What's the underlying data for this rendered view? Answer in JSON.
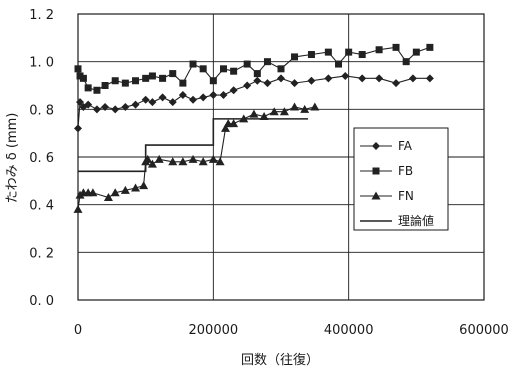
{
  "chart_data": {
    "type": "line",
    "title": "",
    "xlabel": "回数（往復）",
    "ylabel": "たわみ δ (mm)",
    "xlim": [
      0,
      600000
    ],
    "ylim": [
      0.0,
      1.2
    ],
    "x_ticks": [
      {
        "value": 0,
        "label": "0"
      },
      {
        "value": 200000,
        "label": "200000"
      },
      {
        "value": 400000,
        "label": "400000"
      },
      {
        "value": 600000,
        "label": "600000"
      }
    ],
    "y_ticks": [
      {
        "value": 0.0,
        "label": "0. 0"
      },
      {
        "value": 0.2,
        "label": "0. 2"
      },
      {
        "value": 0.4,
        "label": "0. 4"
      },
      {
        "value": 0.6,
        "label": "0. 6"
      },
      {
        "value": 0.8,
        "label": "0. 8"
      },
      {
        "value": 1.0,
        "label": "1. 0"
      },
      {
        "value": 1.2,
        "label": "1. 2"
      }
    ],
    "grid": {
      "horizontal": true,
      "vertical": true
    },
    "legend_position": "right",
    "series": [
      {
        "name": "FA",
        "marker": "diamond",
        "color": "#222222",
        "x": [
          0,
          3000,
          8000,
          15000,
          28000,
          40000,
          55000,
          70000,
          85000,
          100000,
          110000,
          125000,
          140000,
          155000,
          170000,
          185000,
          200000,
          215000,
          230000,
          250000,
          265000,
          280000,
          300000,
          320000,
          345000,
          370000,
          395000,
          420000,
          445000,
          470000,
          495000,
          520000
        ],
        "y": [
          0.72,
          0.83,
          0.81,
          0.82,
          0.8,
          0.81,
          0.8,
          0.81,
          0.82,
          0.84,
          0.83,
          0.85,
          0.83,
          0.86,
          0.84,
          0.85,
          0.86,
          0.86,
          0.88,
          0.9,
          0.92,
          0.91,
          0.93,
          0.91,
          0.92,
          0.93,
          0.94,
          0.93,
          0.93,
          0.91,
          0.93,
          0.93
        ]
      },
      {
        "name": "FB",
        "marker": "square",
        "color": "#222222",
        "x": [
          0,
          3000,
          8000,
          15000,
          28000,
          40000,
          55000,
          70000,
          85000,
          100000,
          110000,
          125000,
          140000,
          155000,
          170000,
          185000,
          200000,
          215000,
          230000,
          250000,
          265000,
          280000,
          300000,
          320000,
          345000,
          370000,
          385000,
          400000,
          420000,
          445000,
          470000,
          485000,
          500000,
          520000
        ],
        "y": [
          0.97,
          0.94,
          0.93,
          0.89,
          0.88,
          0.9,
          0.92,
          0.91,
          0.92,
          0.93,
          0.94,
          0.93,
          0.95,
          0.91,
          0.99,
          0.97,
          0.92,
          0.97,
          0.96,
          0.99,
          0.95,
          1.0,
          0.97,
          1.02,
          1.03,
          1.04,
          0.99,
          1.04,
          1.03,
          1.05,
          1.06,
          1.0,
          1.04,
          1.06
        ]
      },
      {
        "name": "FN",
        "marker": "triangle",
        "color": "#222222",
        "x": [
          0,
          3000,
          8000,
          15000,
          22000,
          45000,
          55000,
          70000,
          85000,
          97000,
          100000,
          103000,
          110000,
          120000,
          140000,
          155000,
          170000,
          185000,
          200000,
          210000,
          218000,
          222000,
          230000,
          245000,
          260000,
          275000,
          290000,
          305000,
          320000,
          335000,
          350000
        ],
        "y": [
          0.38,
          0.44,
          0.45,
          0.45,
          0.45,
          0.43,
          0.45,
          0.46,
          0.47,
          0.48,
          0.58,
          0.59,
          0.57,
          0.59,
          0.58,
          0.58,
          0.59,
          0.58,
          0.59,
          0.58,
          0.72,
          0.74,
          0.74,
          0.76,
          0.78,
          0.77,
          0.79,
          0.79,
          0.81,
          0.8,
          0.81
        ]
      },
      {
        "name": "理論値",
        "marker": "none",
        "style": "step",
        "color": "#222222",
        "x": [
          0,
          100000,
          100000,
          200000,
          200000,
          220000,
          220000,
          340000
        ],
        "y": [
          0.54,
          0.54,
          0.65,
          0.65,
          0.76,
          0.76,
          0.76,
          0.76
        ]
      }
    ]
  }
}
